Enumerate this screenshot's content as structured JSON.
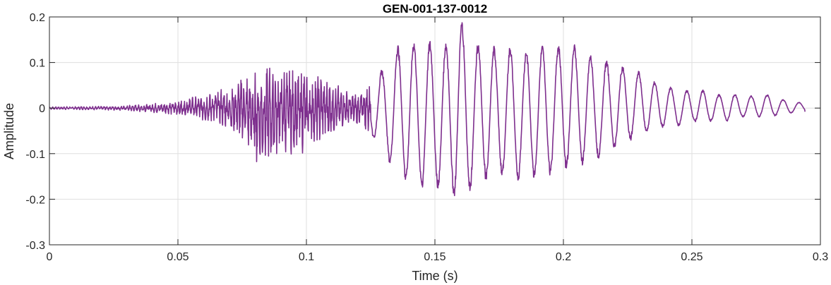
{
  "chart_data": {
    "type": "line",
    "title": "GEN-001-137-0012",
    "xlabel": "Time (s)",
    "ylabel": "Amplitude",
    "xlim": [
      0,
      0.3
    ],
    "ylim": [
      -0.3,
      0.2
    ],
    "x_ticks": [
      0,
      0.05,
      0.1,
      0.15,
      0.2,
      0.25,
      0.3
    ],
    "x_tick_labels": [
      "0",
      "0.05",
      "0.1",
      "0.15",
      "0.2",
      "0.25",
      "0.3"
    ],
    "y_ticks": [
      -0.3,
      -0.2,
      -0.1,
      0,
      0.1,
      0.2
    ],
    "y_tick_labels": [
      "-0.3",
      "-0.2",
      "-0.1",
      "0",
      "0.1",
      "0.2"
    ],
    "grid": true,
    "line_color": "#7e2f8e",
    "series": [
      {
        "envelope": {
          "t": [
            0,
            0.02,
            0.03,
            0.04,
            0.05,
            0.055,
            0.06,
            0.065,
            0.07,
            0.075,
            0.08,
            0.085,
            0.09,
            0.095,
            0.1,
            0.105,
            0.11,
            0.115,
            0.12,
            0.125,
            0.13,
            0.135,
            0.14,
            0.145,
            0.15,
            0.155,
            0.16,
            0.165,
            0.17,
            0.175,
            0.18,
            0.185,
            0.19,
            0.195,
            0.2,
            0.205,
            0.21,
            0.215,
            0.22,
            0.225,
            0.23,
            0.235,
            0.24,
            0.245,
            0.25,
            0.255,
            0.26,
            0.265,
            0.27,
            0.275,
            0.28,
            0.285,
            0.29,
            0.294
          ],
          "upper": [
            0.003,
            0.004,
            0.006,
            0.01,
            0.016,
            0.025,
            0.03,
            0.04,
            0.05,
            0.07,
            0.09,
            0.095,
            0.1,
            0.085,
            0.09,
            0.08,
            0.06,
            0.04,
            0.035,
            0.06,
            0.09,
            0.14,
            0.15,
            0.15,
            0.15,
            0.15,
            0.2,
            0.15,
            0.14,
            0.135,
            0.14,
            0.13,
            0.14,
            0.14,
            0.145,
            0.14,
            0.12,
            0.11,
            0.1,
            0.09,
            0.08,
            0.06,
            0.05,
            0.04,
            0.04,
            0.04,
            0.03,
            0.035,
            0.025,
            0.03,
            0.03,
            0.02,
            0.015,
            0.01
          ],
          "lower": [
            -0.003,
            -0.004,
            -0.006,
            -0.01,
            -0.016,
            -0.02,
            -0.03,
            -0.035,
            -0.05,
            -0.07,
            -0.13,
            -0.12,
            -0.11,
            -0.1,
            -0.1,
            -0.08,
            -0.06,
            -0.04,
            -0.04,
            -0.06,
            -0.1,
            -0.15,
            -0.17,
            -0.18,
            -0.18,
            -0.19,
            -0.205,
            -0.18,
            -0.16,
            -0.15,
            -0.16,
            -0.16,
            -0.16,
            -0.15,
            -0.14,
            -0.13,
            -0.12,
            -0.11,
            -0.09,
            -0.075,
            -0.06,
            -0.05,
            -0.04,
            -0.04,
            -0.03,
            -0.035,
            -0.025,
            -0.03,
            -0.02,
            -0.02,
            -0.02,
            -0.015,
            -0.01,
            -0.008
          ]
        },
        "end": [
          0.294,
          -0.008
        ]
      }
    ]
  }
}
